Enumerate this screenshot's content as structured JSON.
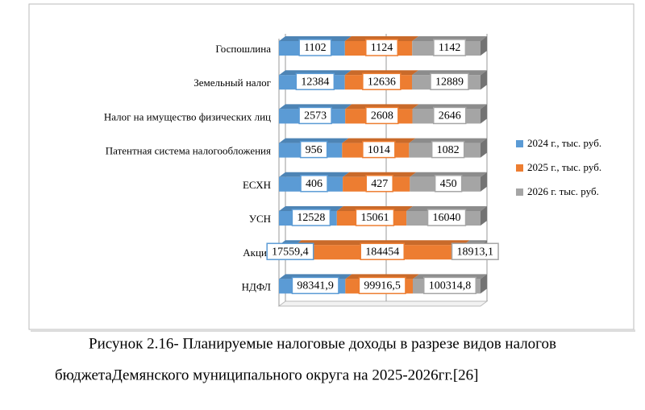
{
  "chart_data": {
    "type": "bar",
    "stacking": "percent",
    "orientation": "horizontal",
    "categories": [
      "Госпошлина",
      "Земельный налог",
      "Налог на имущество физических лиц",
      "Патентная система налогообложения",
      "ЕСХН",
      "УСН",
      "Акциз",
      "НДФЛ"
    ],
    "series": [
      {
        "name": "2024 г., тыс. руб.",
        "color": "#5b9bd5",
        "values": [
          1102,
          12384,
          2573,
          956,
          406,
          12528,
          17559.4,
          98341.9
        ],
        "value_labels": [
          "1102",
          "12384",
          "2573",
          "956",
          "406",
          "12528",
          "17559,4",
          "98341,9"
        ]
      },
      {
        "name": "2025 г., тыс. руб.",
        "color": "#ed7d31",
        "values": [
          1124,
          12636,
          2608,
          1014,
          427,
          15061,
          184454,
          99916.5
        ],
        "value_labels": [
          "1124",
          "12636",
          "2608",
          "1014",
          "427",
          "15061",
          "184454",
          "99916,5"
        ]
      },
      {
        "name": "2026 г. тыс. руб.",
        "color": "#a5a5a5",
        "values": [
          1142,
          12889,
          2646,
          1082,
          450,
          16040,
          18913.1,
          100314.8
        ],
        "value_labels": [
          "1142",
          "12889",
          "2646",
          "1082",
          "450",
          "16040",
          "18913,1",
          "100314,8"
        ]
      }
    ],
    "xlim": [
      0,
      100
    ],
    "xticks": [
      0,
      50,
      100
    ],
    "grid": true,
    "legend": "right",
    "caption": [
      "Рисунок 2.16- Планируемые налоговые доходы в разрезе видов налогов",
      "бюджетаДемянского муниципального округа на 2025-2026гг.[26]"
    ]
  }
}
